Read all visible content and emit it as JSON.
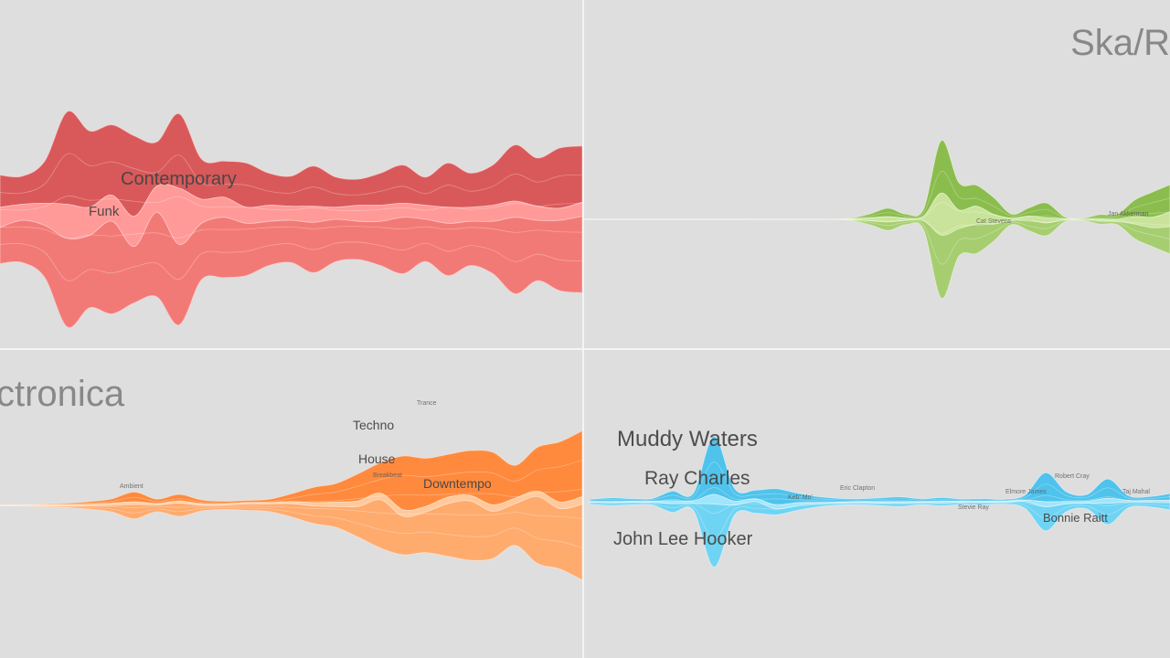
{
  "colors": {
    "background": "#dedede",
    "divider": "#f4f4f4",
    "title_text": "#888888",
    "label_text": "#444444"
  },
  "panels": [
    {
      "id": "funk-soul",
      "title": "",
      "colors": {
        "main": "#f27a76",
        "dark": "#d9595a",
        "light": "#ff9a98",
        "stroke": "#ffd6d4"
      },
      "labels": [
        {
          "text": "Contemporary",
          "size": "large"
        },
        {
          "text": "Funk",
          "size": "medium"
        }
      ]
    },
    {
      "id": "ska-reggae",
      "title": "Ska/R",
      "colors": {
        "main": "#a6ce70",
        "dark": "#8bbd4e",
        "light": "#c9e49a",
        "stroke": "#eaf6d8"
      },
      "labels": [
        {
          "text": "Cat Stevens",
          "size": "tiny"
        },
        {
          "text": "Jan Akkerman",
          "size": "tiny"
        }
      ]
    },
    {
      "id": "electronica",
      "title": "ctronica",
      "colors": {
        "main": "#ffab6e",
        "dark": "#ff8a3d",
        "light": "#ffc99b",
        "stroke": "#ffe6d0"
      },
      "labels": [
        {
          "text": "Techno",
          "size": "medium"
        },
        {
          "text": "House",
          "size": "medium"
        },
        {
          "text": "Downtempo",
          "size": "medium"
        },
        {
          "text": "Trance",
          "size": "tiny"
        },
        {
          "text": "Breakbeat",
          "size": "tiny"
        },
        {
          "text": "Ambient",
          "size": "tiny"
        }
      ]
    },
    {
      "id": "blues",
      "title": "",
      "colors": {
        "main": "#6fd4f3",
        "dark": "#4fc3ec",
        "light": "#9fe5fb",
        "stroke": "#e2f7fe"
      },
      "labels": [
        {
          "text": "Muddy Waters",
          "size": "xlarge"
        },
        {
          "text": "Ray Charles",
          "size": "large"
        },
        {
          "text": "John Lee Hooker",
          "size": "large"
        },
        {
          "text": "Bonnie Raitt",
          "size": "small"
        },
        {
          "text": "Robert Cray",
          "size": "tiny"
        },
        {
          "text": "Taj Mahal",
          "size": "tiny"
        },
        {
          "text": "Keb' Mo'",
          "size": "tiny"
        },
        {
          "text": "Eric Clapton",
          "size": "tiny"
        },
        {
          "text": "Elmore James",
          "size": "tiny"
        },
        {
          "text": "Stevie Ray",
          "size": "tiny"
        }
      ]
    }
  ],
  "chart_data": [
    {
      "type": "area",
      "panel": "funk-soul",
      "series": [
        {
          "name": "Contemporary",
          "values": [
            16,
            14,
            21,
            46,
            38,
            35,
            40,
            22,
            37,
            20,
            18,
            22,
            16,
            15,
            20,
            15,
            13,
            16,
            19,
            14,
            22,
            17,
            20,
            28,
            24,
            30,
            28
          ]
        },
        {
          "name": "Funk",
          "values": [
            10,
            8,
            11,
            17,
            14,
            13,
            15,
            13,
            28,
            12,
            10,
            8,
            8,
            7,
            8,
            6,
            8,
            8,
            7,
            7,
            8,
            7,
            8,
            8,
            7,
            6,
            7
          ]
        },
        {
          "values": [
            18,
            21,
            26,
            44,
            36,
            46,
            28,
            42,
            40,
            28,
            30,
            26,
            22,
            21,
            25,
            21,
            19,
            22,
            28,
            21,
            26,
            22,
            26,
            38,
            30,
            35,
            38
          ]
        }
      ]
    },
    {
      "type": "area",
      "panel": "ska-reggae",
      "series": [
        {
          "name": "Cat Stevens",
          "values": [
            0,
            0,
            0,
            0,
            0,
            0,
            1,
            4,
            8,
            4,
            7,
            50,
            26,
            20,
            16,
            4,
            8,
            14,
            2,
            1,
            4,
            5,
            16,
            24,
            26
          ]
        },
        {
          "values": [
            0,
            0,
            0,
            0,
            0,
            0,
            1,
            3,
            5,
            2,
            4,
            40,
            18,
            17,
            9,
            2,
            4,
            5,
            1,
            0,
            2,
            2,
            7,
            10,
            14
          ]
        },
        {
          "name": "Jan Akkerman",
          "values": [
            0,
            0,
            0,
            0,
            0,
            0,
            1,
            4,
            8,
            4,
            9,
            60,
            26,
            28,
            16,
            4,
            10,
            12,
            2,
            1,
            3,
            3,
            14,
            18,
            26
          ]
        }
      ]
    },
    {
      "type": "area",
      "panel": "electronica",
      "series": [
        {
          "name": "Techno",
          "values": [
            1,
            1,
            2,
            3,
            5,
            8,
            18,
            8,
            12,
            7,
            5,
            4,
            6,
            14,
            28,
            34,
            50,
            56,
            98,
            88,
            78,
            82,
            96,
            60,
            80,
            110,
            120
          ]
        },
        {
          "name": "House",
          "values": [
            0,
            0,
            1,
            2,
            3,
            4,
            5,
            3,
            4,
            3,
            2,
            2,
            2,
            4,
            6,
            8,
            10,
            12,
            12,
            10,
            12,
            10,
            12,
            10,
            10,
            12,
            14
          ]
        },
        {
          "name": "Downtempo",
          "values": [
            1,
            1,
            2,
            3,
            6,
            12,
            26,
            12,
            24,
            10,
            8,
            12,
            14,
            24,
            32,
            38,
            56,
            88,
            70,
            74,
            96,
            108,
            86,
            76,
            122,
            110,
            138
          ]
        }
      ]
    },
    {
      "type": "area",
      "panel": "blues",
      "series": [
        {
          "name": "Muddy Waters",
          "values": [
            5,
            8,
            6,
            6,
            20,
            16,
            120,
            26,
            18,
            34,
            20,
            12,
            8,
            6,
            8,
            10,
            6,
            8,
            5,
            6,
            4,
            10,
            60,
            20,
            14,
            40,
            10,
            8,
            14
          ]
        },
        {
          "name": "Ray Charles",
          "values": [
            1,
            2,
            2,
            2,
            6,
            5,
            20,
            8,
            6,
            8,
            6,
            3,
            2,
            2,
            3,
            3,
            2,
            3,
            2,
            2,
            2,
            3,
            10,
            5,
            4,
            10,
            3,
            3,
            4
          ]
        },
        {
          "name": "John Lee Hooker",
          "values": [
            4,
            6,
            5,
            5,
            18,
            14,
            130,
            20,
            24,
            12,
            10,
            6,
            4,
            4,
            5,
            7,
            4,
            6,
            4,
            5,
            4,
            14,
            50,
            16,
            12,
            44,
            12,
            10,
            16
          ]
        }
      ]
    }
  ]
}
